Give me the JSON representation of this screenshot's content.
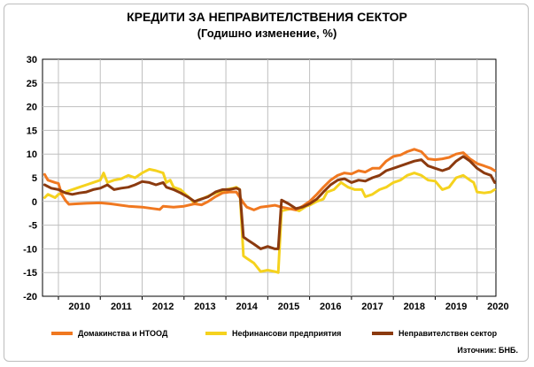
{
  "title": "КРЕДИТИ ЗА НЕПРАВИТЕЛСТВЕНИЯ  СЕКТОР",
  "subtitle": "(Годишно  изменение, %)",
  "source": "Източник: БНБ.",
  "chart_data": {
    "type": "line",
    "title": "КРЕДИТИ ЗА НЕПРАВИТЕЛСТВЕНИЯ  СЕКТОР",
    "subtitle": "(Годишно  изменение, %)",
    "ylim": [
      -20,
      30
    ],
    "yticks": [
      -20,
      -15,
      -10,
      -5,
      0,
      5,
      10,
      15,
      20,
      25,
      30
    ],
    "xlim": [
      2009.62,
      2020.45
    ],
    "xticks": [
      "2010",
      "2011",
      "2012",
      "2013",
      "2014",
      "2015",
      "2016",
      "2017",
      "2018",
      "2019",
      "2020"
    ],
    "grid": true,
    "legend_position": "bottom",
    "series": [
      {
        "name": "Домакинства и НТООД",
        "color": "#F07820",
        "points": [
          [
            2009.67,
            5.7
          ],
          [
            2009.75,
            4.5
          ],
          [
            2009.92,
            4.0
          ],
          [
            2010.0,
            3.8
          ],
          [
            2010.08,
            1.5
          ],
          [
            2010.17,
            0.2
          ],
          [
            2010.25,
            -0.6
          ],
          [
            2010.42,
            -0.5
          ],
          [
            2010.67,
            -0.4
          ],
          [
            2011.0,
            -0.3
          ],
          [
            2011.25,
            -0.5
          ],
          [
            2011.5,
            -0.8
          ],
          [
            2011.67,
            -1.0
          ],
          [
            2012.0,
            -1.2
          ],
          [
            2012.25,
            -1.5
          ],
          [
            2012.42,
            -1.7
          ],
          [
            2012.5,
            -1.0
          ],
          [
            2012.75,
            -1.2
          ],
          [
            2013.0,
            -1.0
          ],
          [
            2013.25,
            -0.5
          ],
          [
            2013.42,
            -0.7
          ],
          [
            2013.58,
            0.0
          ],
          [
            2013.75,
            1.0
          ],
          [
            2013.92,
            1.8
          ],
          [
            2014.08,
            2.0
          ],
          [
            2014.25,
            2.0
          ],
          [
            2014.42,
            -0.3
          ],
          [
            2014.5,
            -1.2
          ],
          [
            2014.67,
            -1.8
          ],
          [
            2014.83,
            -1.2
          ],
          [
            2015.0,
            -1.0
          ],
          [
            2015.17,
            -0.8
          ],
          [
            2015.33,
            -1.2
          ],
          [
            2015.5,
            -1.5
          ],
          [
            2015.67,
            -1.8
          ],
          [
            2015.83,
            -1.0
          ],
          [
            2016.0,
            0.0
          ],
          [
            2016.17,
            1.5
          ],
          [
            2016.33,
            3.0
          ],
          [
            2016.5,
            4.5
          ],
          [
            2016.67,
            5.5
          ],
          [
            2016.83,
            6.0
          ],
          [
            2017.0,
            5.8
          ],
          [
            2017.17,
            6.5
          ],
          [
            2017.33,
            6.2
          ],
          [
            2017.5,
            7.0
          ],
          [
            2017.67,
            7.0
          ],
          [
            2017.83,
            8.5
          ],
          [
            2018.0,
            9.5
          ],
          [
            2018.17,
            9.8
          ],
          [
            2018.33,
            10.5
          ],
          [
            2018.5,
            11.0
          ],
          [
            2018.67,
            10.5
          ],
          [
            2018.83,
            9.0
          ],
          [
            2019.0,
            8.8
          ],
          [
            2019.17,
            9.0
          ],
          [
            2019.33,
            9.3
          ],
          [
            2019.5,
            10.0
          ],
          [
            2019.67,
            10.3
          ],
          [
            2019.83,
            9.0
          ],
          [
            2020.0,
            8.0
          ],
          [
            2020.17,
            7.5
          ],
          [
            2020.33,
            7.0
          ],
          [
            2020.42,
            6.5
          ]
        ]
      },
      {
        "name": "Нефинансови предприятия",
        "color": "#F5D21E",
        "points": [
          [
            2009.67,
            0.8
          ],
          [
            2009.75,
            1.5
          ],
          [
            2009.92,
            0.8
          ],
          [
            2010.0,
            1.5
          ],
          [
            2010.17,
            2.0
          ],
          [
            2010.33,
            2.5
          ],
          [
            2010.5,
            3.0
          ],
          [
            2010.67,
            3.5
          ],
          [
            2010.83,
            4.0
          ],
          [
            2011.0,
            4.5
          ],
          [
            2011.08,
            6.0
          ],
          [
            2011.17,
            4.0
          ],
          [
            2011.33,
            4.5
          ],
          [
            2011.5,
            4.8
          ],
          [
            2011.67,
            5.5
          ],
          [
            2011.83,
            5.0
          ],
          [
            2012.0,
            6.0
          ],
          [
            2012.17,
            6.8
          ],
          [
            2012.33,
            6.5
          ],
          [
            2012.5,
            6.0
          ],
          [
            2012.58,
            4.0
          ],
          [
            2012.67,
            4.5
          ],
          [
            2012.75,
            3.0
          ],
          [
            2012.92,
            2.5
          ],
          [
            2013.0,
            1.8
          ],
          [
            2013.17,
            0.5
          ],
          [
            2013.25,
            -0.5
          ],
          [
            2013.33,
            0.3
          ],
          [
            2013.5,
            0.8
          ],
          [
            2013.67,
            1.5
          ],
          [
            2013.83,
            2.0
          ],
          [
            2014.0,
            2.5
          ],
          [
            2014.17,
            2.8
          ],
          [
            2014.25,
            3.0
          ],
          [
            2014.33,
            2.5
          ],
          [
            2014.42,
            -11.5
          ],
          [
            2014.5,
            -12.0
          ],
          [
            2014.67,
            -13.0
          ],
          [
            2014.83,
            -14.8
          ],
          [
            2015.0,
            -14.5
          ],
          [
            2015.17,
            -14.8
          ],
          [
            2015.25,
            -15.0
          ],
          [
            2015.33,
            -2.0
          ],
          [
            2015.42,
            -1.8
          ],
          [
            2015.58,
            -1.5
          ],
          [
            2015.75,
            -2.0
          ],
          [
            2015.92,
            -1.0
          ],
          [
            2016.0,
            -0.8
          ],
          [
            2016.17,
            0.0
          ],
          [
            2016.33,
            0.5
          ],
          [
            2016.42,
            2.0
          ],
          [
            2016.58,
            2.5
          ],
          [
            2016.75,
            4.0
          ],
          [
            2016.92,
            3.0
          ],
          [
            2017.08,
            2.5
          ],
          [
            2017.25,
            2.5
          ],
          [
            2017.33,
            1.0
          ],
          [
            2017.5,
            1.5
          ],
          [
            2017.67,
            2.5
          ],
          [
            2017.83,
            3.0
          ],
          [
            2018.0,
            4.0
          ],
          [
            2018.17,
            4.5
          ],
          [
            2018.33,
            5.5
          ],
          [
            2018.5,
            6.0
          ],
          [
            2018.67,
            5.5
          ],
          [
            2018.83,
            4.5
          ],
          [
            2019.0,
            4.3
          ],
          [
            2019.17,
            2.5
          ],
          [
            2019.33,
            3.0
          ],
          [
            2019.5,
            5.0
          ],
          [
            2019.67,
            5.5
          ],
          [
            2019.83,
            4.5
          ],
          [
            2019.92,
            4.0
          ],
          [
            2020.0,
            2.0
          ],
          [
            2020.17,
            1.8
          ],
          [
            2020.33,
            2.0
          ],
          [
            2020.42,
            2.5
          ]
        ]
      },
      {
        "name": "Неправителствен  сектор",
        "color": "#8B3A0F",
        "points": [
          [
            2009.67,
            3.5
          ],
          [
            2009.83,
            2.8
          ],
          [
            2010.0,
            2.5
          ],
          [
            2010.17,
            1.8
          ],
          [
            2010.33,
            1.5
          ],
          [
            2010.5,
            1.8
          ],
          [
            2010.67,
            2.0
          ],
          [
            2010.83,
            2.5
          ],
          [
            2011.0,
            2.8
          ],
          [
            2011.17,
            3.5
          ],
          [
            2011.33,
            2.5
          ],
          [
            2011.5,
            2.8
          ],
          [
            2011.67,
            3.0
          ],
          [
            2011.83,
            3.5
          ],
          [
            2012.0,
            4.2
          ],
          [
            2012.17,
            4.0
          ],
          [
            2012.33,
            3.5
          ],
          [
            2012.5,
            4.0
          ],
          [
            2012.58,
            3.0
          ],
          [
            2012.75,
            2.5
          ],
          [
            2012.92,
            1.8
          ],
          [
            2013.08,
            1.0
          ],
          [
            2013.25,
            0.0
          ],
          [
            2013.42,
            0.5
          ],
          [
            2013.58,
            1.0
          ],
          [
            2013.75,
            2.0
          ],
          [
            2013.92,
            2.5
          ],
          [
            2014.08,
            2.5
          ],
          [
            2014.25,
            2.8
          ],
          [
            2014.33,
            2.5
          ],
          [
            2014.42,
            -7.5
          ],
          [
            2014.5,
            -8.0
          ],
          [
            2014.67,
            -9.0
          ],
          [
            2014.83,
            -10.0
          ],
          [
            2015.0,
            -9.5
          ],
          [
            2015.17,
            -10.0
          ],
          [
            2015.25,
            -10.0
          ],
          [
            2015.33,
            0.3
          ],
          [
            2015.5,
            -0.5
          ],
          [
            2015.67,
            -1.5
          ],
          [
            2015.83,
            -1.2
          ],
          [
            2016.0,
            -0.5
          ],
          [
            2016.17,
            0.5
          ],
          [
            2016.33,
            2.0
          ],
          [
            2016.5,
            3.5
          ],
          [
            2016.67,
            4.5
          ],
          [
            2016.83,
            4.8
          ],
          [
            2017.0,
            4.0
          ],
          [
            2017.17,
            4.5
          ],
          [
            2017.33,
            4.3
          ],
          [
            2017.5,
            5.0
          ],
          [
            2017.67,
            5.5
          ],
          [
            2017.83,
            6.5
          ],
          [
            2018.0,
            7.0
          ],
          [
            2018.17,
            7.5
          ],
          [
            2018.33,
            8.0
          ],
          [
            2018.5,
            8.5
          ],
          [
            2018.67,
            8.8
          ],
          [
            2018.83,
            7.5
          ],
          [
            2019.0,
            7.0
          ],
          [
            2019.17,
            6.5
          ],
          [
            2019.33,
            7.0
          ],
          [
            2019.5,
            8.5
          ],
          [
            2019.67,
            9.5
          ],
          [
            2019.83,
            8.5
          ],
          [
            2020.0,
            7.0
          ],
          [
            2020.17,
            6.0
          ],
          [
            2020.33,
            5.5
          ],
          [
            2020.42,
            4.0
          ]
        ]
      }
    ]
  }
}
